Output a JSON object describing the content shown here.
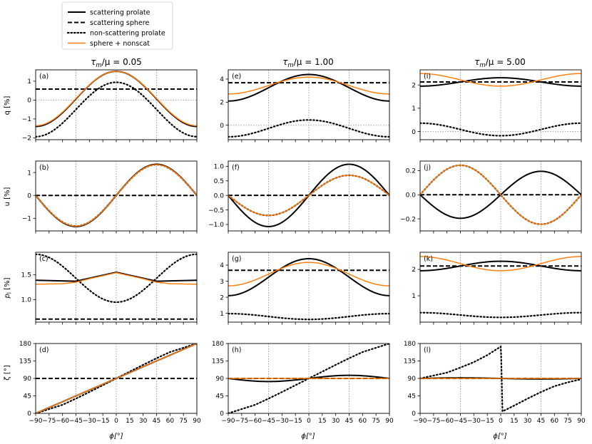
{
  "figure": {
    "x_label": "ϕ[°]",
    "x_ticks": [
      "−90",
      "−75",
      "−60",
      "−45",
      "−30",
      "−15",
      "0",
      "15",
      "30",
      "45",
      "60",
      "75",
      "90"
    ],
    "row_labels": [
      "q [%]",
      "u [%]",
      "p",
      "ζ [°]"
    ],
    "row_label_subscript": "l",
    "row_label_suffix": " [%]",
    "col_titles": [
      {
        "lhs": "τ",
        "sub": "m",
        "rest": "/μ = 0.05"
      },
      {
        "lhs": "τ",
        "sub": "m",
        "rest": "/μ = 1.00"
      },
      {
        "lhs": "τ",
        "sub": "m",
        "rest": "/μ = 5.00"
      }
    ],
    "legend": [
      {
        "label": "scattering prolate",
        "style": "solid",
        "color": "#000000"
      },
      {
        "label": "scattering sphere",
        "style": "dashed",
        "color": "#000000"
      },
      {
        "label": "non-scattering prolate",
        "style": "dotted",
        "color": "#000000"
      },
      {
        "label": "sphere + nonscat",
        "style": "solid",
        "color": "#ff7f0e"
      }
    ]
  },
  "chart_data": {
    "type": "line",
    "x_range": [
      -90,
      90
    ],
    "colors": {
      "scat": "#000000",
      "sphere": "#000000",
      "nonscat": "#000000",
      "sum": "#ff7f0e",
      "guide": "#a0a0a0"
    },
    "panels": [
      {
        "id": "(a)",
        "row": 0,
        "col": 0,
        "ylim": [
          -2.1,
          1.6
        ],
        "yticks": [
          -2,
          -1,
          0,
          1
        ],
        "ytick_labels": [
          "−2",
          "−1",
          "0",
          "1"
        ],
        "hline": 0,
        "series": {
          "scat_prolate": {
            "form": "cos2",
            "a": 0.06,
            "b": 1.46
          },
          "sphere": {
            "form": "const",
            "v": 0.58
          },
          "nonscat": {
            "form": "cos2",
            "a": -0.5,
            "b": 1.44
          },
          "sum": {
            "form": "cos2",
            "a": 0.08,
            "b": 1.44
          }
        }
      },
      {
        "id": "(b)",
        "row": 1,
        "col": 0,
        "ylim": [
          -1.55,
          1.5
        ],
        "yticks": [
          -1,
          0,
          1
        ],
        "ytick_labels": [
          "−1",
          "0",
          "1"
        ],
        "hline": 0,
        "series": {
          "scat_prolate": {
            "form": "sin2",
            "a": 0,
            "b": 1.36
          },
          "sphere": {
            "form": "const",
            "v": 0
          },
          "nonscat": {
            "form": "sin2",
            "a": 0,
            "b": 1.34
          },
          "sum": {
            "form": "sin2",
            "a": 0,
            "b": 1.34
          }
        }
      },
      {
        "id": "(c)",
        "row": 2,
        "col": 0,
        "ylim": [
          0.55,
          1.95
        ],
        "yticks": [
          1.0,
          1.5
        ],
        "ytick_labels": [
          "1.0",
          "1.5"
        ],
        "hline": null,
        "series": {
          "scat_prolate": {
            "form": "points",
            "x": [
              -90,
              -45,
              0,
              45,
              90
            ],
            "y": [
              1.39,
              1.37,
              1.55,
              1.37,
              1.39
            ]
          },
          "sphere": {
            "form": "const",
            "v": 0.61
          },
          "nonscat": {
            "form": "cos2",
            "a": 1.43,
            "b": -0.48
          },
          "sum": {
            "form": "points",
            "x": [
              -90,
              -60,
              -45,
              -30,
              0,
              30,
              45,
              60,
              90
            ],
            "y": [
              1.31,
              1.32,
              1.35,
              1.42,
              1.54,
              1.42,
              1.35,
              1.32,
              1.31
            ]
          }
        }
      },
      {
        "id": "(d)",
        "row": 3,
        "col": 0,
        "ylim": [
          0,
          180
        ],
        "yticks": [
          0,
          45,
          90,
          135,
          180
        ],
        "ytick_labels": [
          "0",
          "45",
          "90",
          "135",
          "180"
        ],
        "hline": null,
        "series": {
          "scat_prolate": {
            "form": "linear",
            "m": 1.0,
            "c": 90
          },
          "sphere": {
            "form": "const",
            "v": 90
          },
          "nonscat": {
            "form": "points",
            "x": [
              -90,
              -60,
              -45,
              -30,
              0,
              30,
              45,
              60,
              90
            ],
            "y": [
              0,
              22,
              38,
              55,
              90,
              125,
              142,
              158,
              180
            ]
          },
          "sum": {
            "form": "linear",
            "m": 1.0,
            "c": 90
          }
        }
      },
      {
        "id": "(e)",
        "row": 0,
        "col": 1,
        "ylim": [
          -1.25,
          4.8
        ],
        "yticks": [
          0,
          2,
          4
        ],
        "ytick_labels": [
          "0",
          "2",
          "4"
        ],
        "hline": 0,
        "series": {
          "scat_prolate": {
            "form": "cos2",
            "a": 3.25,
            "b": 1.15
          },
          "sphere": {
            "form": "const",
            "v": 3.68
          },
          "nonscat": {
            "form": "cos2",
            "a": -0.27,
            "b": 0.73
          },
          "sum": {
            "form": "cos2",
            "a": 3.44,
            "b": 0.73
          }
        }
      },
      {
        "id": "(f)",
        "row": 1,
        "col": 1,
        "ylim": [
          -1.22,
          1.18
        ],
        "yticks": [
          -1.0,
          -0.5,
          0.0,
          0.5,
          1.0
        ],
        "ytick_labels": [
          "−1.0",
          "−0.5",
          "0.0",
          "0.5",
          "1.0"
        ],
        "hline": 0,
        "series": {
          "scat_prolate": {
            "form": "sin2",
            "a": 0,
            "b": 1.07
          },
          "sphere": {
            "form": "const",
            "v": 0
          },
          "nonscat": {
            "form": "sin2",
            "a": 0,
            "b": 0.69
          },
          "sum": {
            "form": "sin2",
            "a": 0,
            "b": 0.69
          }
        }
      },
      {
        "id": "(g)",
        "row": 2,
        "col": 1,
        "ylim": [
          0.45,
          4.8
        ],
        "yticks": [
          1,
          2,
          3,
          4
        ],
        "ytick_labels": [
          "1",
          "2",
          "3",
          "4"
        ],
        "hline": null,
        "series": {
          "scat_prolate": {
            "form": "cos2",
            "a": 3.25,
            "b": 1.15
          },
          "sphere": {
            "form": "const",
            "v": 3.68
          },
          "nonscat": {
            "form": "cos2",
            "a": 0.8,
            "b": -0.18
          },
          "sum": {
            "form": "cos2",
            "a": 3.44,
            "b": 0.73
          }
        }
      },
      {
        "id": "(h)",
        "row": 3,
        "col": 1,
        "ylim": [
          0,
          180
        ],
        "yticks": [
          0,
          45,
          90,
          135,
          180
        ],
        "ytick_labels": [
          "0",
          "45",
          "90",
          "135",
          "180"
        ],
        "hline": null,
        "series": {
          "scat_prolate": {
            "form": "sin2",
            "a": 90,
            "b": 8
          },
          "sphere": {
            "form": "const",
            "v": 90
          },
          "nonscat": {
            "form": "points",
            "x": [
              -90,
              -60,
              -45,
              -30,
              0,
              30,
              45,
              60,
              90
            ],
            "y": [
              0,
              22,
              38,
              55,
              90,
              125,
              142,
              158,
              180
            ]
          },
          "sum": {
            "form": "const",
            "v": 90
          }
        }
      },
      {
        "id": "(i)",
        "row": 0,
        "col": 2,
        "ylim": [
          -0.35,
          2.65
        ],
        "yticks": [
          0,
          1,
          2
        ],
        "ytick_labels": [
          "0",
          "1",
          "2"
        ],
        "hline": 0,
        "series": {
          "scat_prolate": {
            "form": "cos2",
            "a": 2.13,
            "b": 0.18
          },
          "sphere": {
            "form": "const",
            "v": 2.13
          },
          "nonscat": {
            "form": "cos2",
            "a": 0.09,
            "b": -0.27
          },
          "sum": {
            "form": "cos2",
            "a": 2.22,
            "b": -0.27
          }
        }
      },
      {
        "id": "(j)",
        "row": 1,
        "col": 2,
        "ylim": [
          -0.3,
          0.28
        ],
        "yticks": [
          -0.2,
          0.0,
          0.2
        ],
        "ytick_labels": [
          "−0.2",
          "0.0",
          "0.2"
        ],
        "hline": 0,
        "series": {
          "scat_prolate": {
            "form": "sin2",
            "a": 0,
            "b": 0.195
          },
          "sphere": {
            "form": "const",
            "v": 0
          },
          "nonscat": {
            "form": "sin2",
            "a": 0,
            "b": -0.245
          },
          "sum": {
            "form": "sin2",
            "a": 0,
            "b": -0.245
          }
        }
      },
      {
        "id": "(k)",
        "row": 2,
        "col": 2,
        "ylim": [
          0.0,
          2.65
        ],
        "yticks": [
          1,
          2
        ],
        "ytick_labels": [
          "1",
          "2"
        ],
        "hline": null,
        "series": {
          "scat_prolate": {
            "form": "cos2",
            "a": 2.13,
            "b": 0.18
          },
          "sphere": {
            "form": "const",
            "v": 2.13
          },
          "nonscat": {
            "form": "cos2",
            "a": 0.27,
            "b": -0.09
          },
          "sum": {
            "form": "cos2",
            "a": 2.22,
            "b": -0.27
          }
        }
      },
      {
        "id": "(l)",
        "row": 3,
        "col": 2,
        "ylim": [
          0,
          180
        ],
        "yticks": [
          0,
          45,
          90,
          135,
          180
        ],
        "ytick_labels": [
          "0",
          "45",
          "90",
          "135",
          "180"
        ],
        "hline": null,
        "series": {
          "scat_prolate": {
            "form": "sin2",
            "a": 90,
            "b": -1.5
          },
          "sphere": {
            "form": "const",
            "v": 90
          },
          "nonscat": {
            "form": "points",
            "x": [
              -90,
              -60,
              -45,
              -30,
              -15,
              0,
              0.5,
              2,
              15,
              30,
              45,
              60,
              75,
              90
            ],
            "y": [
              90,
              105,
              118,
              132,
              150,
              172,
              150,
              5,
              20,
              38,
              55,
              70,
              80,
              88
            ]
          },
          "sum": {
            "form": "const",
            "v": 90
          }
        }
      }
    ]
  }
}
